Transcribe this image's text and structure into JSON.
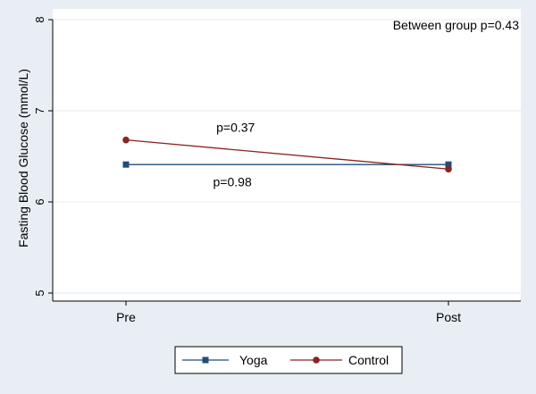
{
  "chart_data": {
    "type": "line",
    "ylabel": "Fasting Blood Glucose (mmol/L)",
    "xlabel": "",
    "categories": [
      "Pre",
      "Post"
    ],
    "ylim": [
      5,
      8
    ],
    "yticks": [
      5,
      6,
      7,
      8
    ],
    "grid": true,
    "series": [
      {
        "name": "Yoga",
        "values": [
          6.41,
          6.41
        ],
        "color": "#1f4e79",
        "marker": "square"
      },
      {
        "name": "Control",
        "values": [
          6.68,
          6.36
        ],
        "color": "#8b2323",
        "marker": "circle"
      }
    ],
    "annotations": [
      {
        "text": "Between group p=0.43",
        "x": "Post",
        "y": 7.94
      },
      {
        "text": "p=0.37",
        "x": 0.34,
        "y": 6.82
      },
      {
        "text": "p=0.98",
        "x": 0.33,
        "y": 6.22
      }
    ],
    "legend": "bottom-center"
  }
}
